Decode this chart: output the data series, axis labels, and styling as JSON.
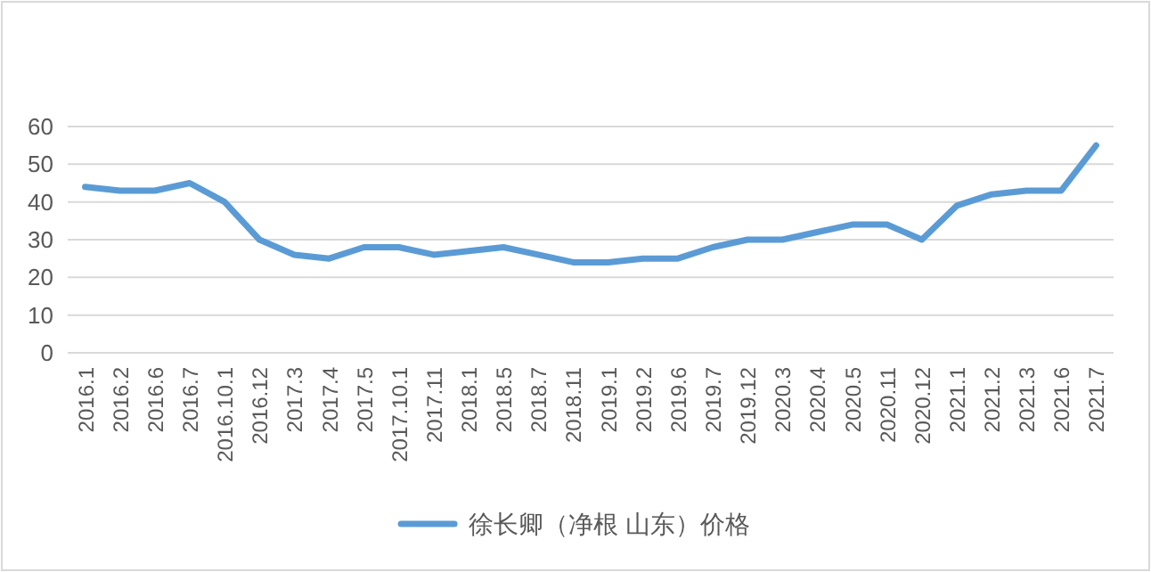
{
  "chart_data": {
    "type": "line",
    "categories": [
      "2016.1",
      "2016.2",
      "2016.6",
      "2016.7",
      "2016.10.1",
      "2016.12",
      "2017.3",
      "2017.4",
      "2017.5",
      "2017.10.1",
      "2017.11",
      "2018.1",
      "2018.5",
      "2018.7",
      "2018.11",
      "2019.1",
      "2019.2",
      "2019.6",
      "2019.7",
      "2019.12",
      "2020.3",
      "2020.4",
      "2020.5",
      "2020.11",
      "2020.12",
      "2021.1",
      "2021.2",
      "2021.3",
      "2021.6",
      "2021.7"
    ],
    "series": [
      {
        "name": "徐长卿（净根 山东）价格",
        "color": "#5b9bd5",
        "values": [
          44,
          43,
          43,
          45,
          40,
          30,
          26,
          25,
          28,
          28,
          26,
          27,
          28,
          26,
          24,
          24,
          25,
          25,
          28,
          30,
          30,
          32,
          34,
          34,
          30,
          39,
          42,
          43,
          43,
          55
        ]
      }
    ],
    "ylim": [
      0,
      60
    ],
    "yticks": [
      0,
      10,
      20,
      30,
      40,
      50,
      60
    ],
    "grid": "y",
    "legend": "bottom",
    "marker": "none",
    "line_style": "solid"
  }
}
